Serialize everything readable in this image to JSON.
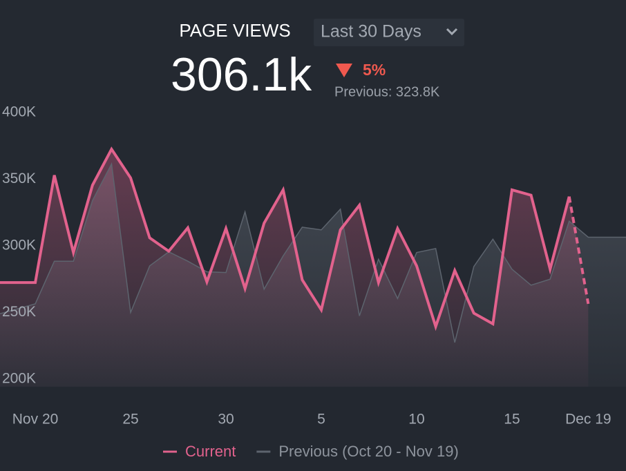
{
  "header": {
    "title": "PAGE VIEWS",
    "period": "Last 30 Days",
    "total": "306.1k",
    "change": "5%",
    "previous": "Previous: 323.8K"
  },
  "chart_data": {
    "type": "area",
    "ylim": [
      200,
      400
    ],
    "yticks": [
      {
        "value": 400,
        "label": "400K"
      },
      {
        "value": 350,
        "label": "350K"
      },
      {
        "value": 300,
        "label": "300K"
      },
      {
        "value": 250,
        "label": "250K"
      },
      {
        "value": 200,
        "label": "200K"
      }
    ],
    "xlim": [
      -1.85,
      30.98
    ],
    "xticks": [
      {
        "value": 0,
        "label": "Nov 20"
      },
      {
        "value": 5,
        "label": "25"
      },
      {
        "value": 10,
        "label": "30"
      },
      {
        "value": 15,
        "label": "5"
      },
      {
        "value": 20,
        "label": "10"
      },
      {
        "value": 25,
        "label": "15"
      },
      {
        "value": 29,
        "label": "Dec 19"
      }
    ],
    "series": [
      {
        "name": "Previous (Oct 20 - Nov 19)",
        "color": "#5d646e",
        "fill": "#3b414a",
        "x": [
          -2,
          0,
          1,
          2,
          3,
          4,
          5,
          6,
          7,
          8,
          9,
          10,
          11,
          12,
          13,
          14,
          15,
          16,
          17,
          18,
          19,
          20,
          21,
          22,
          23,
          24,
          25,
          26,
          27,
          28,
          29,
          31
        ],
        "values": [
          248.5,
          256.5,
          288.5,
          288.5,
          334,
          361.5,
          250,
          285,
          295.5,
          288.5,
          280.5,
          280,
          325.5,
          267.5,
          292.5,
          314,
          312,
          327.5,
          247.5,
          290,
          260.5,
          295,
          298,
          227.5,
          284.5,
          305,
          282.5,
          270.5,
          275,
          318.5,
          306.5,
          306.5
        ]
      },
      {
        "name": "Current",
        "color": "#e2628d",
        "fill": "#5a3a4a",
        "x": [
          -2,
          0,
          1,
          2,
          3,
          4,
          5,
          6,
          7,
          8,
          9,
          10,
          11,
          12,
          13,
          14,
          15,
          16,
          17,
          18,
          19,
          20,
          21,
          22,
          23,
          24,
          25,
          26,
          27,
          28,
          29
        ],
        "values": [
          272.5,
          272.5,
          353,
          295,
          345.5,
          372.5,
          351,
          306,
          296,
          313.5,
          273,
          313,
          268,
          317,
          342,
          274.5,
          252,
          312,
          330.5,
          272.5,
          313,
          285,
          239.5,
          281.5,
          249.5,
          241.5,
          342,
          338,
          282.5,
          337,
          256.5
        ]
      }
    ]
  }
}
